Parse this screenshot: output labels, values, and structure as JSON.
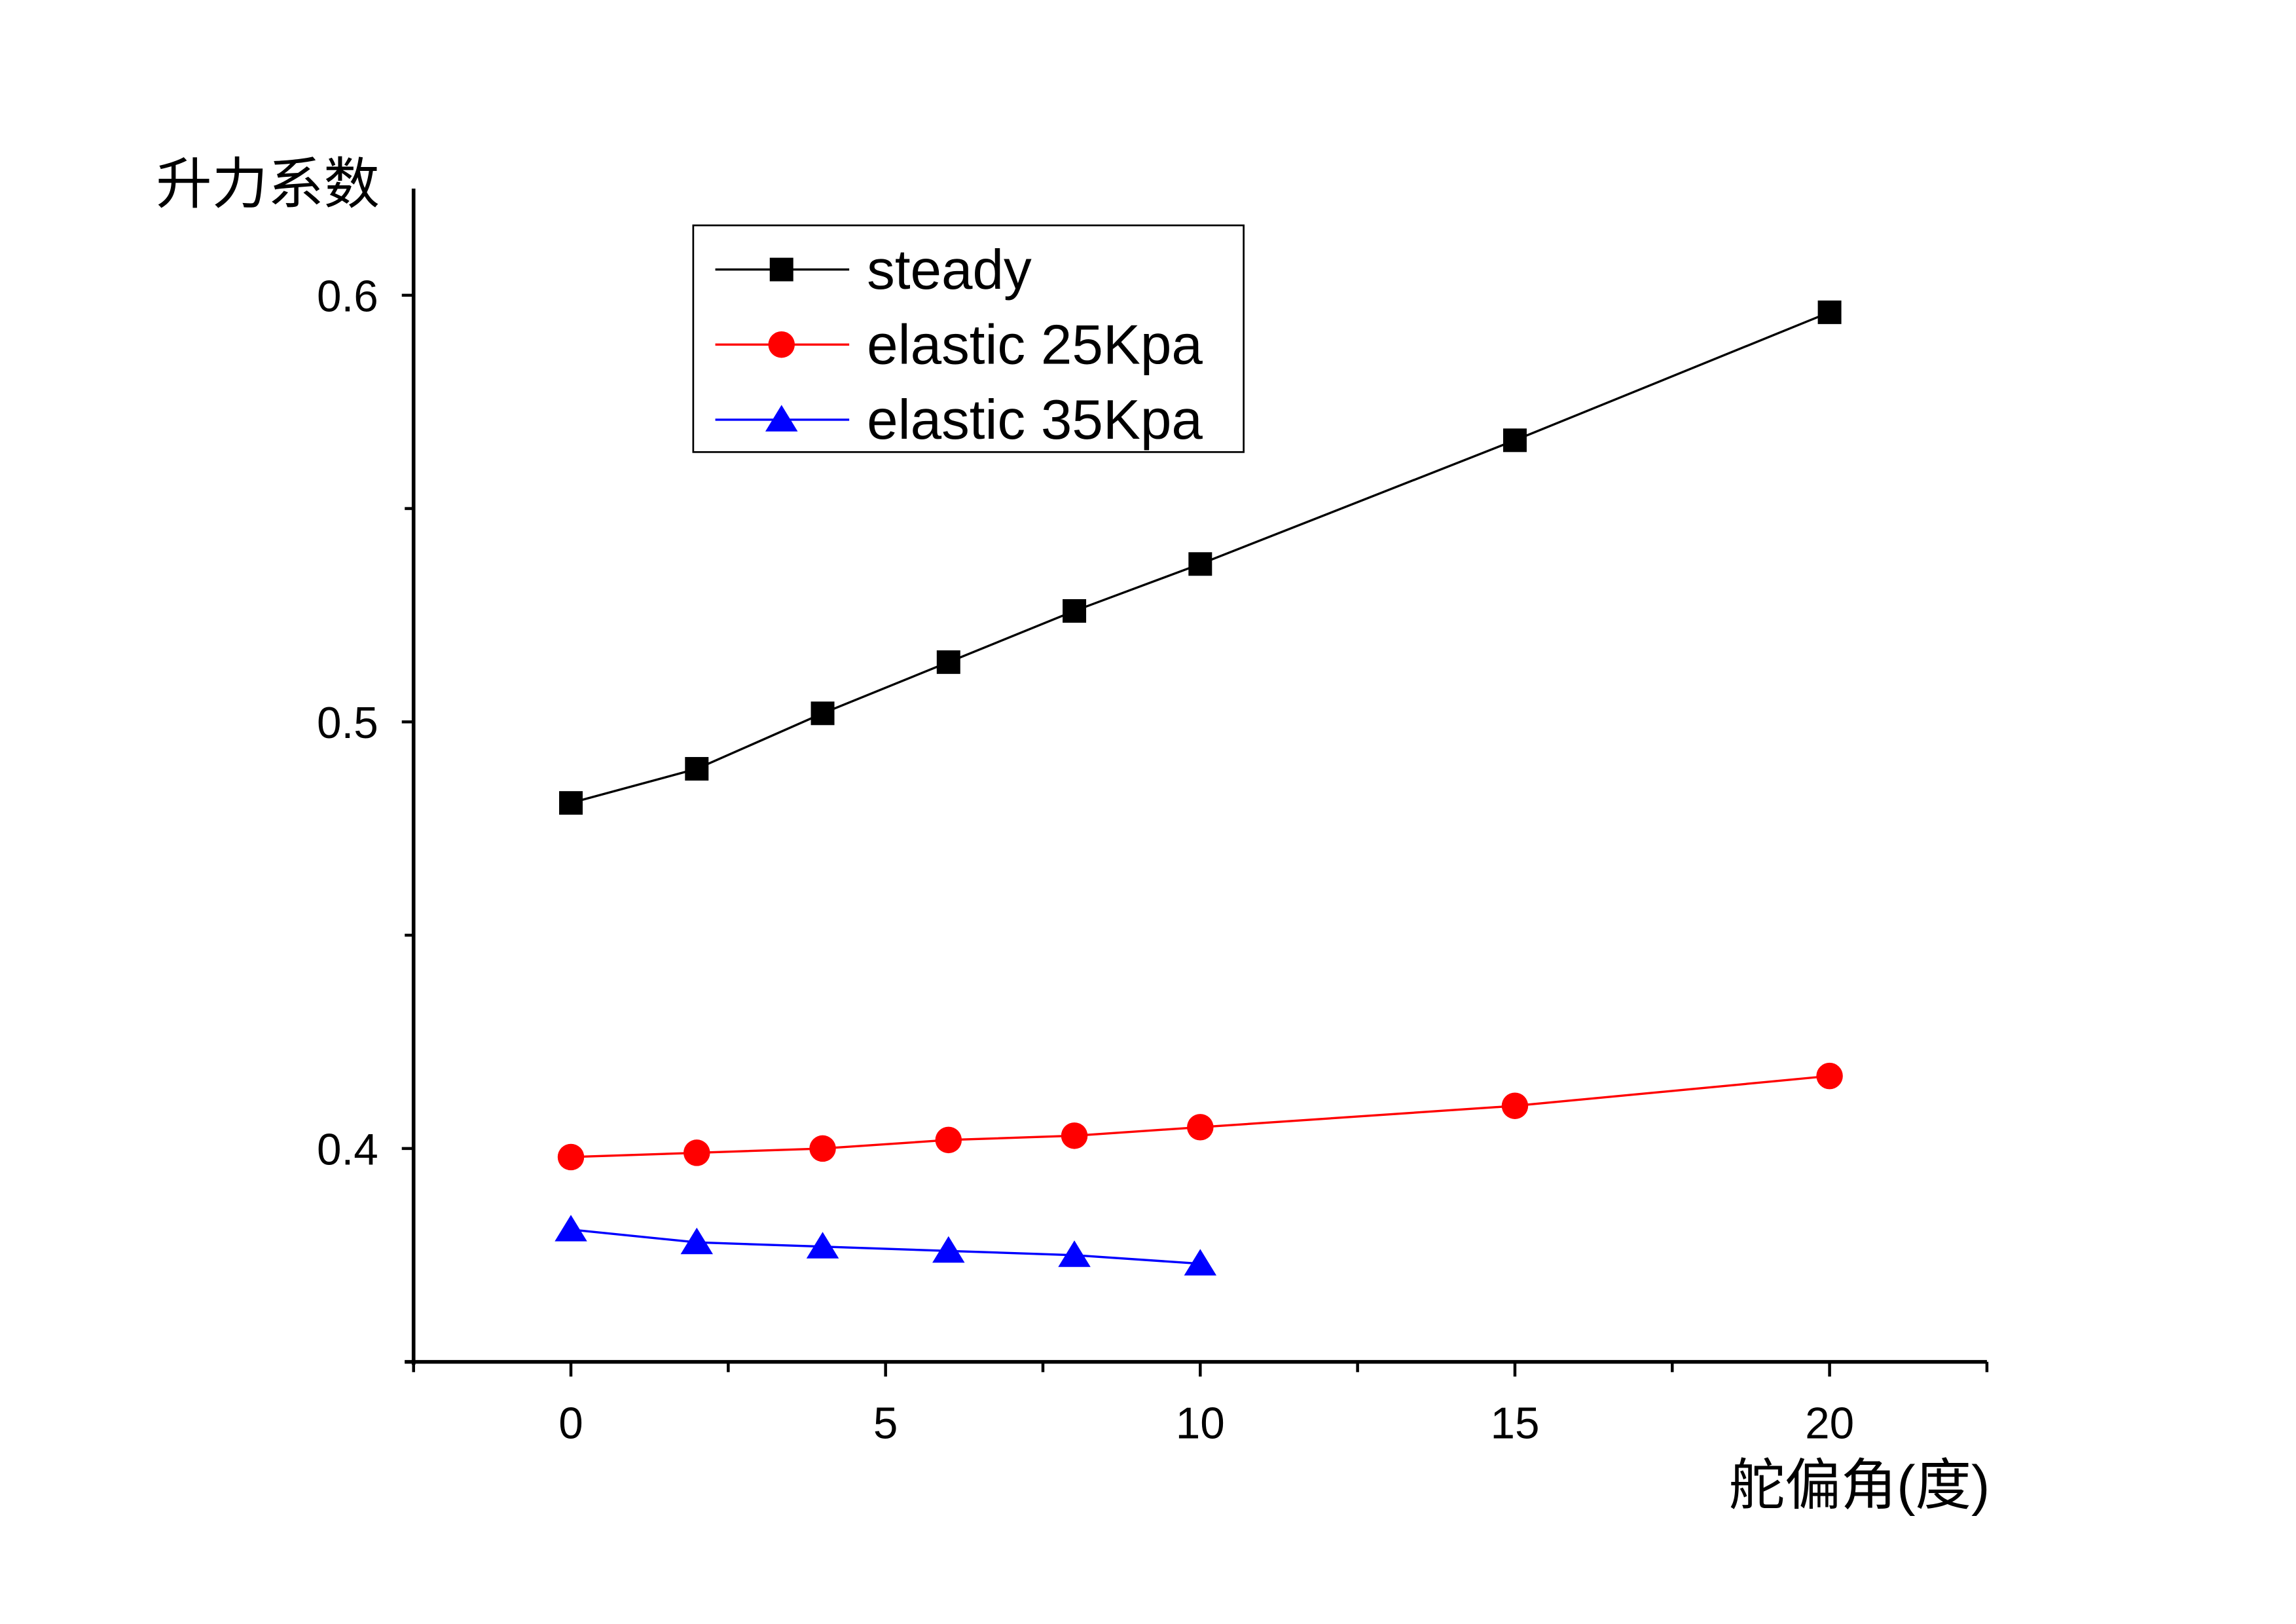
{
  "chart_data": {
    "type": "line",
    "title": "",
    "xlabel": "舵偏角(度)",
    "ylabel": "升力系数",
    "xlim": [
      -2.5,
      22.5
    ],
    "ylim": [
      0.35,
      0.625
    ],
    "xticks": [
      0,
      5,
      10,
      15,
      20
    ],
    "xtick_labels": [
      "0",
      "5",
      "10",
      "15",
      "20"
    ],
    "yticks": [
      0.4,
      0.5,
      0.6
    ],
    "ytick_labels": [
      "0.4",
      "0.5",
      "0.6"
    ],
    "grid": false,
    "legend_position": "top-left",
    "series": [
      {
        "name": "steady",
        "color": "#000000",
        "marker": "square",
        "x": [
          0,
          2,
          4,
          6,
          8,
          10,
          15,
          20
        ],
        "y": [
          0.481,
          0.489,
          0.502,
          0.514,
          0.526,
          0.537,
          0.566,
          0.596
        ]
      },
      {
        "name": "elastic 25Kpa",
        "color": "#ff0000",
        "marker": "circle",
        "x": [
          0,
          2,
          4,
          6,
          8,
          10,
          15,
          20
        ],
        "y": [
          0.398,
          0.399,
          0.4,
          0.402,
          0.403,
          0.405,
          0.41,
          0.417
        ]
      },
      {
        "name": "elastic 35Kpa",
        "color": "#0000ff",
        "marker": "triangle",
        "x": [
          0,
          2,
          4,
          6,
          8,
          10
        ],
        "y": [
          0.381,
          0.378,
          0.377,
          0.376,
          0.375,
          0.373
        ]
      }
    ]
  }
}
